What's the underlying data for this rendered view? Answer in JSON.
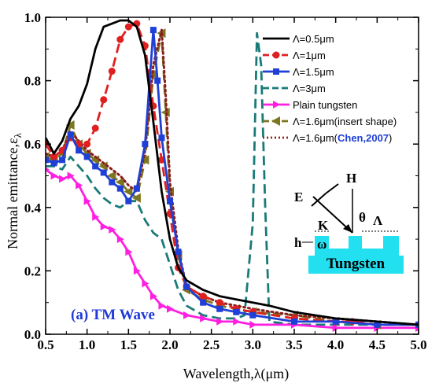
{
  "chart_data": {
    "type": "line",
    "xlabel": "Wavelength,λ(μm)",
    "ylabel_main": "Normal emittance,ε",
    "ylabel_sub": "λ",
    "xlim": [
      0.5,
      5.0
    ],
    "ylim": [
      0.0,
      1.0
    ],
    "x_ticks": [
      "0.5",
      "1.0",
      "1.5",
      "2.0",
      "2.5",
      "3.0",
      "3.5",
      "4.0",
      "4.5",
      "5.0"
    ],
    "y_ticks": [
      "0.0",
      "0.2",
      "0.4",
      "0.6",
      "0.8",
      "1.0"
    ],
    "panel_label": "(a) TM Wave",
    "legend_position": "top-right",
    "series": [
      {
        "name": "Λ=0.5μm",
        "color": "#000000",
        "style": "solid",
        "marker": "none",
        "points": [
          [
            0.5,
            0.62
          ],
          [
            0.6,
            0.57
          ],
          [
            0.7,
            0.61
          ],
          [
            0.8,
            0.68
          ],
          [
            0.9,
            0.72
          ],
          [
            1.0,
            0.79
          ],
          [
            1.1,
            0.9
          ],
          [
            1.2,
            0.97
          ],
          [
            1.3,
            0.98
          ],
          [
            1.4,
            0.99
          ],
          [
            1.5,
            0.99
          ],
          [
            1.6,
            0.97
          ],
          [
            1.7,
            0.88
          ],
          [
            1.8,
            0.67
          ],
          [
            1.9,
            0.45
          ],
          [
            2.0,
            0.3
          ],
          [
            2.1,
            0.21
          ],
          [
            2.2,
            0.17
          ],
          [
            2.4,
            0.14
          ],
          [
            2.6,
            0.12
          ],
          [
            2.8,
            0.11
          ],
          [
            3.0,
            0.1
          ],
          [
            3.2,
            0.09
          ],
          [
            3.5,
            0.07
          ],
          [
            4.0,
            0.05
          ],
          [
            4.5,
            0.04
          ],
          [
            5.0,
            0.03
          ]
        ]
      },
      {
        "name": "Λ=1μm",
        "color": "#e02020",
        "style": "dashed",
        "marker": "circle",
        "points": [
          [
            0.5,
            0.6
          ],
          [
            0.6,
            0.56
          ],
          [
            0.7,
            0.58
          ],
          [
            0.8,
            0.62
          ],
          [
            0.9,
            0.6
          ],
          [
            1.0,
            0.6
          ],
          [
            1.1,
            0.65
          ],
          [
            1.2,
            0.74
          ],
          [
            1.3,
            0.83
          ],
          [
            1.4,
            0.93
          ],
          [
            1.5,
            0.97
          ],
          [
            1.6,
            0.98
          ],
          [
            1.7,
            0.91
          ],
          [
            1.8,
            0.72
          ],
          [
            1.9,
            0.55
          ],
          [
            2.0,
            0.38
          ],
          [
            2.1,
            0.21
          ],
          [
            2.2,
            0.15
          ],
          [
            2.4,
            0.12
          ],
          [
            2.6,
            0.1
          ],
          [
            2.8,
            0.08
          ],
          [
            3.0,
            0.07
          ],
          [
            3.5,
            0.05
          ],
          [
            4.0,
            0.04
          ],
          [
            4.2,
            0.04
          ],
          [
            4.5,
            0.03
          ],
          [
            5.0,
            0.03
          ]
        ]
      },
      {
        "name": "Λ=1.5μm",
        "color": "#1f3fd6",
        "style": "solid",
        "marker": "square",
        "points": [
          [
            0.5,
            0.55
          ],
          [
            0.6,
            0.54
          ],
          [
            0.7,
            0.55
          ],
          [
            0.8,
            0.63
          ],
          [
            0.9,
            0.58
          ],
          [
            1.0,
            0.56
          ],
          [
            1.1,
            0.53
          ],
          [
            1.2,
            0.51
          ],
          [
            1.3,
            0.48
          ],
          [
            1.4,
            0.46
          ],
          [
            1.5,
            0.42
          ],
          [
            1.6,
            0.46
          ],
          [
            1.7,
            0.6
          ],
          [
            1.8,
            0.96
          ],
          [
            1.85,
            0.8
          ],
          [
            1.9,
            0.62
          ],
          [
            2.0,
            0.42
          ],
          [
            2.1,
            0.26
          ],
          [
            2.2,
            0.15
          ],
          [
            2.4,
            0.1
          ],
          [
            2.6,
            0.08
          ],
          [
            2.8,
            0.07
          ],
          [
            3.0,
            0.06
          ],
          [
            3.5,
            0.04
          ],
          [
            4.0,
            0.04
          ],
          [
            4.5,
            0.03
          ],
          [
            5.0,
            0.03
          ]
        ]
      },
      {
        "name": "Λ=3μm",
        "color": "#1a7a78",
        "style": "dashed",
        "marker": "none",
        "points": [
          [
            0.5,
            0.53
          ],
          [
            0.6,
            0.53
          ],
          [
            0.7,
            0.52
          ],
          [
            0.8,
            0.56
          ],
          [
            0.9,
            0.53
          ],
          [
            1.0,
            0.5
          ],
          [
            1.1,
            0.46
          ],
          [
            1.2,
            0.43
          ],
          [
            1.3,
            0.41
          ],
          [
            1.4,
            0.4
          ],
          [
            1.5,
            0.42
          ],
          [
            1.6,
            0.42
          ],
          [
            1.7,
            0.36
          ],
          [
            1.8,
            0.32
          ],
          [
            1.9,
            0.3
          ],
          [
            2.0,
            0.22
          ],
          [
            2.1,
            0.14
          ],
          [
            2.2,
            0.09
          ],
          [
            2.4,
            0.06
          ],
          [
            2.6,
            0.05
          ],
          [
            2.8,
            0.05
          ],
          [
            2.9,
            0.06
          ],
          [
            3.0,
            0.35
          ],
          [
            3.05,
            0.95
          ],
          [
            3.1,
            0.85
          ],
          [
            3.15,
            0.4
          ],
          [
            3.2,
            0.04
          ],
          [
            3.5,
            0.03
          ],
          [
            4.0,
            0.03
          ],
          [
            4.5,
            0.03
          ],
          [
            5.0,
            0.03
          ]
        ]
      },
      {
        "name": "Plain tungsten",
        "color": "#ff1fe0",
        "style": "solid",
        "marker": "triangle-right",
        "points": [
          [
            0.5,
            0.52
          ],
          [
            0.6,
            0.5
          ],
          [
            0.7,
            0.49
          ],
          [
            0.8,
            0.5
          ],
          [
            0.9,
            0.47
          ],
          [
            1.0,
            0.42
          ],
          [
            1.1,
            0.37
          ],
          [
            1.2,
            0.34
          ],
          [
            1.3,
            0.33
          ],
          [
            1.4,
            0.3
          ],
          [
            1.5,
            0.26
          ],
          [
            1.6,
            0.2
          ],
          [
            1.7,
            0.16
          ],
          [
            1.8,
            0.12
          ],
          [
            1.9,
            0.09
          ],
          [
            2.0,
            0.08
          ],
          [
            2.2,
            0.06
          ],
          [
            2.4,
            0.05
          ],
          [
            2.6,
            0.04
          ],
          [
            2.8,
            0.04
          ],
          [
            3.0,
            0.03
          ],
          [
            3.5,
            0.03
          ],
          [
            4.0,
            0.02
          ],
          [
            4.5,
            0.02
          ],
          [
            5.0,
            0.02
          ]
        ]
      },
      {
        "name": "Λ=1.6μm(insert shape)",
        "color": "#7d7520",
        "style": "dashed",
        "marker": "triangle-left",
        "points": [
          [
            0.5,
            0.56
          ],
          [
            0.6,
            0.55
          ],
          [
            0.7,
            0.57
          ],
          [
            0.8,
            0.66
          ],
          [
            0.9,
            0.6
          ],
          [
            1.0,
            0.57
          ],
          [
            1.1,
            0.55
          ],
          [
            1.2,
            0.53
          ],
          [
            1.3,
            0.5
          ],
          [
            1.4,
            0.48
          ],
          [
            1.5,
            0.45
          ],
          [
            1.6,
            0.43
          ],
          [
            1.7,
            0.55
          ],
          [
            1.8,
            0.82
          ],
          [
            1.9,
            0.95
          ],
          [
            1.95,
            0.7
          ],
          [
            2.0,
            0.45
          ],
          [
            2.1,
            0.25
          ],
          [
            2.2,
            0.14
          ],
          [
            2.4,
            0.11
          ],
          [
            2.6,
            0.09
          ],
          [
            2.8,
            0.08
          ],
          [
            3.0,
            0.07
          ],
          [
            3.5,
            0.06
          ],
          [
            4.0,
            0.04
          ],
          [
            4.5,
            0.03
          ],
          [
            5.0,
            0.03
          ]
        ]
      },
      {
        "name": "Λ=1.6μm(Chen,2007)",
        "color": "#8a1e1e",
        "style": "dotted",
        "marker": "none",
        "points": [
          [
            0.5,
            0.57
          ],
          [
            0.6,
            0.56
          ],
          [
            0.7,
            0.58
          ],
          [
            0.8,
            0.64
          ],
          [
            0.9,
            0.61
          ],
          [
            1.0,
            0.58
          ],
          [
            1.1,
            0.56
          ],
          [
            1.2,
            0.54
          ],
          [
            1.3,
            0.52
          ],
          [
            1.4,
            0.5
          ],
          [
            1.5,
            0.47
          ],
          [
            1.6,
            0.45
          ],
          [
            1.7,
            0.58
          ],
          [
            1.8,
            0.85
          ],
          [
            1.9,
            0.96
          ],
          [
            1.95,
            0.75
          ],
          [
            2.0,
            0.48
          ],
          [
            2.1,
            0.27
          ],
          [
            2.2,
            0.15
          ],
          [
            2.4,
            0.12
          ],
          [
            2.6,
            0.1
          ],
          [
            2.8,
            0.09
          ],
          [
            3.0,
            0.08
          ],
          [
            3.5,
            0.06
          ],
          [
            4.0,
            0.05
          ],
          [
            4.5,
            0.04
          ],
          [
            5.0,
            0.03
          ]
        ]
      }
    ],
    "legend_labels": [
      "Λ=0.5μm",
      "Λ=1μm",
      "Λ=1.5μm",
      "Λ=3μm",
      "Plain tungsten",
      "Λ=1.6μm(insert shape)",
      "Λ=1.6μm("
    ],
    "legend_last_highlight": "Chen,2007",
    "legend_last_close": ")",
    "inset": {
      "label_E": "E",
      "label_H": "H",
      "label_K": "K",
      "label_theta": "θ",
      "label_period": "Λ",
      "label_h": "h",
      "label_omega": "ω",
      "material": "Tungsten",
      "fill_color": "#22e0f0"
    }
  }
}
